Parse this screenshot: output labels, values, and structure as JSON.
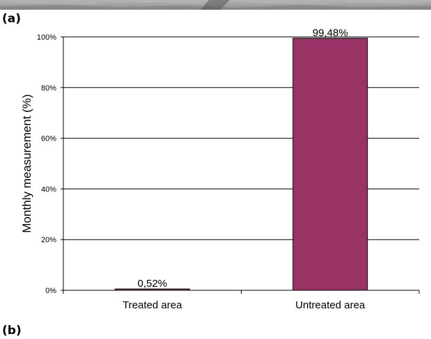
{
  "panels": {
    "top_label": "(a)",
    "bottom_label": "(b)"
  },
  "colors": {
    "bar_fill": "#993366",
    "bar_stroke": "#000000",
    "grid": "#000000",
    "photo_strip": "#9a9a9a"
  },
  "chart_data": {
    "type": "bar",
    "categories": [
      "Treated area",
      "Untreated area"
    ],
    "values": [
      0.52,
      99.48
    ],
    "data_labels": [
      "0,52%",
      "99,48%"
    ],
    "ylabel": "Monthly measurement (%)",
    "xlabel": "",
    "ylim": [
      0,
      100
    ],
    "yticks": [
      0,
      20,
      40,
      60,
      80,
      100
    ],
    "ytick_labels": [
      "0%",
      "20%",
      "40%",
      "60%",
      "80%",
      "100%"
    ],
    "grid": true,
    "legend": "none"
  }
}
